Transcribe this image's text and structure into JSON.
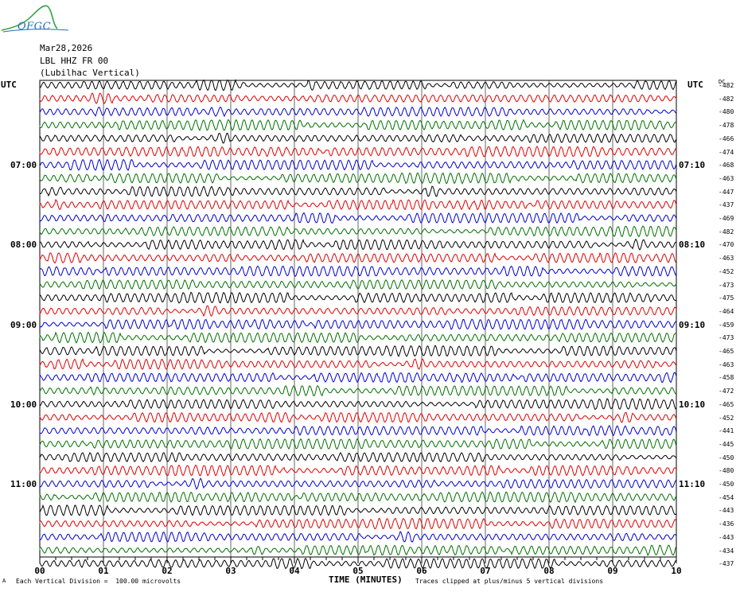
{
  "logo": {
    "text": "OFGC"
  },
  "header": {
    "date": "Mar28,2026",
    "station": "LBL HHZ FR 00",
    "location": "(Lubilhac Vertical)"
  },
  "left_utc": "UTC",
  "right_utc": "UTC",
  "dc_label": "DC",
  "footer": {
    "scale": "Each Vertical Division =  100.00 microvolts",
    "clip": "Traces clipped at plus/minus 5 vertical divisions",
    "mark": "A"
  },
  "chart_data": {
    "type": "line",
    "title": "",
    "xlabel": "TIME (MINUTES)",
    "ylabel": "",
    "xlim": [
      0,
      10
    ],
    "x_ticks": [
      "00",
      "01",
      "02",
      "03",
      "04",
      "05",
      "06",
      "07",
      "08",
      "09",
      "10"
    ],
    "left_time_labels": [
      {
        "row": 6,
        "text": "07:00"
      },
      {
        "row": 12,
        "text": "08:00"
      },
      {
        "row": 18,
        "text": "09:00"
      },
      {
        "row": 24,
        "text": "10:00"
      },
      {
        "row": 30,
        "text": "11:00"
      }
    ],
    "right_time_labels": [
      {
        "row": 6,
        "text": "07:10"
      },
      {
        "row": 12,
        "text": "08:10"
      },
      {
        "row": 18,
        "text": "09:10"
      },
      {
        "row": 24,
        "text": "10:10"
      },
      {
        "row": 30,
        "text": "11:10"
      }
    ],
    "trace_colors": [
      "#000000",
      "#e00000",
      "#0000d0",
      "#007000"
    ],
    "dc_offsets": [
      "-482",
      "-482",
      "-480",
      "-478",
      "-466",
      "-474",
      "-468",
      "-463",
      "-447",
      "-437",
      "-469",
      "-482",
      "-470",
      "-463",
      "-452",
      "-473",
      "-475",
      "-464",
      "-459",
      "-473",
      "-465",
      "-463",
      "-458",
      "-472",
      "-465",
      "-452",
      "-441",
      "-445",
      "-450",
      "-480",
      "-450",
      "-454",
      "-443",
      "-436",
      "-443",
      "-434",
      "-437"
    ],
    "grid": true
  }
}
